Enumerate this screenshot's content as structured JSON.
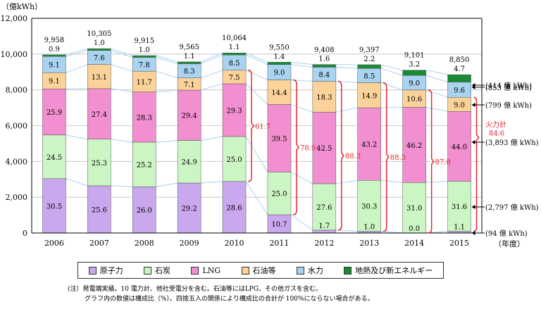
{
  "chart_data": {
    "type": "bar",
    "stacked": true,
    "unit_label": "（億kWh）",
    "xlabel": "（年度）",
    "ylim": [
      0,
      12000
    ],
    "yticks": [
      "0",
      "2,000",
      "4,000",
      "6,000",
      "8,000",
      "10,000",
      "12,000"
    ],
    "categories": [
      "2006",
      "2007",
      "2008",
      "2009",
      "2010",
      "2011",
      "2012",
      "2013",
      "2014",
      "2015"
    ],
    "totals": [
      9958,
      10305,
      9915,
      9565,
      10064,
      9550,
      9408,
      9397,
      9101,
      8850
    ],
    "total_labels": [
      "9,958",
      "10,305",
      "9,915",
      "9,565",
      "10,064",
      "9,550",
      "9,408",
      "9,397",
      "9,101",
      "8,850"
    ],
    "series": [
      {
        "name": "原子力",
        "color": "#c9a8ee",
        "shares": [
          30.5,
          25.6,
          26.0,
          29.2,
          28.6,
          10.7,
          1.7,
          1.0,
          0.0,
          1.1
        ]
      },
      {
        "name": "石炭",
        "color": "#ccf5c4",
        "shares": [
          24.5,
          25.3,
          25.2,
          24.9,
          25.0,
          25.0,
          27.6,
          30.3,
          31.0,
          31.6
        ]
      },
      {
        "name": "LNG",
        "color": "#f28fd0",
        "shares": [
          25.9,
          27.4,
          28.3,
          29.4,
          29.3,
          39.5,
          42.5,
          43.2,
          46.2,
          44.0
        ]
      },
      {
        "name": "石油等",
        "color": "#fbd29a",
        "shares": [
          9.1,
          13.1,
          11.7,
          7.1,
          7.5,
          14.4,
          18.3,
          14.9,
          10.6,
          9.0
        ]
      },
      {
        "name": "水力",
        "color": "#a9d3f0",
        "shares": [
          9.1,
          7.6,
          7.8,
          8.3,
          8.5,
          9.0,
          8.4,
          8.5,
          9.0,
          9.6
        ]
      },
      {
        "name": "地熱及び新エネルギー",
        "color": "#1a8a35",
        "shares": [
          0.9,
          1.0,
          1.0,
          1.1,
          1.1,
          1.4,
          1.6,
          2.2,
          3.2,
          4.7
        ]
      }
    ],
    "fossil_totals": [
      {
        "category": "2010",
        "value": "61.7"
      },
      {
        "category": "2011",
        "value": "78.9"
      },
      {
        "category": "2012",
        "value": "88.3"
      },
      {
        "category": "2013",
        "value": "88.3"
      },
      {
        "category": "2014",
        "value": "87.8"
      }
    ],
    "fossil_2015": {
      "title": "火力計",
      "value": "84.6"
    },
    "annotations_2015": [
      {
        "series": "地熱及び新エネルギー",
        "text": "(414 億 kWh)"
      },
      {
        "series": "水力",
        "text": "(853 億 kWh)"
      },
      {
        "series": "石油等",
        "text": "(799 億 kWh)"
      },
      {
        "series": "LNG",
        "text": "(3,893 億 kWh)"
      },
      {
        "series": "石炭",
        "text": "(2,797 億 kWh)"
      },
      {
        "series": "原子力",
        "text": "(94 億 kWh)"
      }
    ]
  },
  "legend": [
    {
      "label": "原子力",
      "color": "#c9a8ee"
    },
    {
      "label": "石炭",
      "color": "#ccf5c4"
    },
    {
      "label": "LNG",
      "color": "#f28fd0"
    },
    {
      "label": "石油等",
      "color": "#fbd29a"
    },
    {
      "label": "水力",
      "color": "#a9d3f0"
    },
    {
      "label": "地熱及び新エネルギー",
      "color": "#1a8a35"
    }
  ],
  "notes": {
    "line1": "(注）発電端実績。10 電力計、他社受電分を含む。石油等にはLPG、その他ガスを含む。",
    "line2": "グラフ内の数値は構成比（%）。四捨五入の関係により構成比の合計が 100%にならない場合がある。"
  }
}
